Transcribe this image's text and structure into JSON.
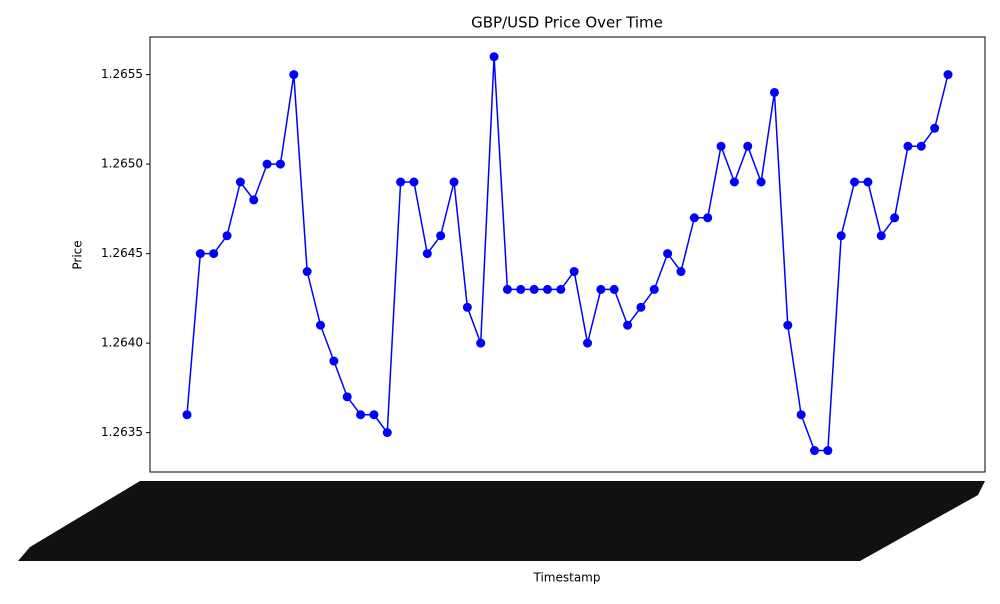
{
  "chart_data": {
    "type": "line",
    "title": "GBP/USD Price Over Time",
    "x_label": "Timestamp",
    "y_label": "Price",
    "color": "#0000ff",
    "values": [
      1.2636,
      1.2645,
      1.2645,
      1.2646,
      1.2649,
      1.2648,
      1.265,
      1.265,
      1.2655,
      1.2644,
      1.2641,
      1.2639,
      1.2637,
      1.2636,
      1.2636,
      1.2635,
      1.2649,
      1.2649,
      1.2645,
      1.2646,
      1.2649,
      1.2642,
      1.264,
      1.2656,
      1.2643,
      1.2643,
      1.2643,
      1.2643,
      1.2643,
      1.2644,
      1.264,
      1.2643,
      1.2643,
      1.2641,
      1.2642,
      1.2643,
      1.2645,
      1.2644,
      1.2647,
      1.2647,
      1.2651,
      1.2649,
      1.2651,
      1.2649,
      1.2654,
      1.2641,
      1.2636,
      1.2634,
      1.2634,
      1.2646,
      1.2649,
      1.2649,
      1.2646,
      1.2647,
      1.2651,
      1.2651,
      1.2652,
      1.2655
    ],
    "ylim": [
      1.26328,
      1.26571
    ],
    "yticks": [
      1.2635,
      {
        "value": 1.264,
        "label": "1.2640"
      },
      1.2645,
      {
        "value": 1.265,
        "label": "1.2650"
      },
      1.2655
    ],
    "grid": false
  }
}
